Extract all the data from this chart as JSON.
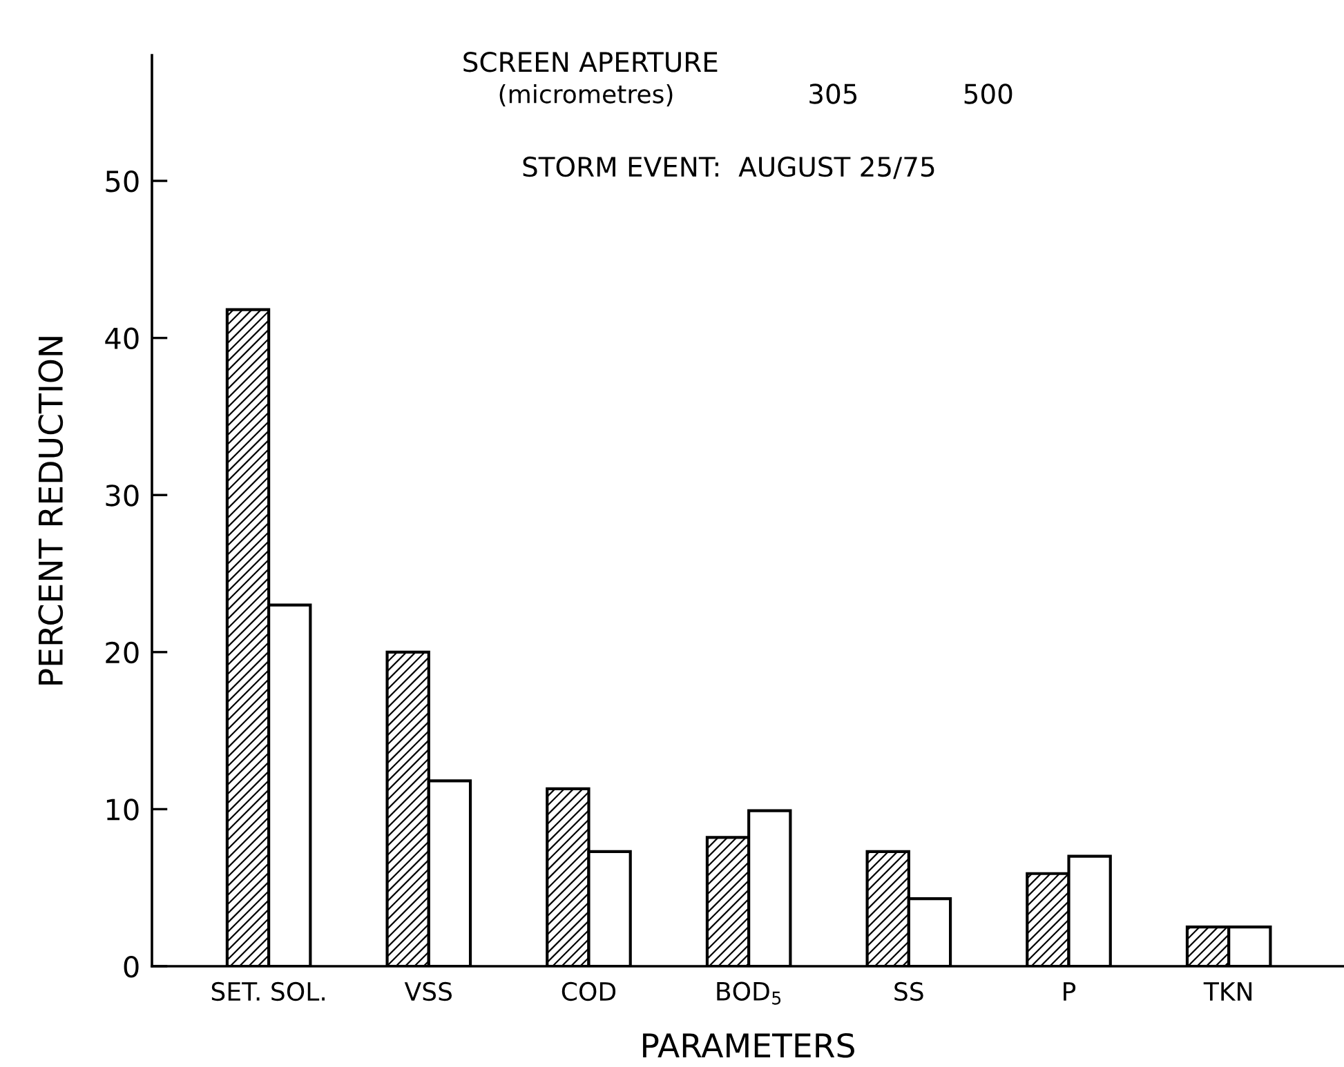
{
  "chart_data": {
    "type": "bar",
    "xlabel": "PARAMETERS",
    "ylabel": "PERCENT REDUCTION",
    "categories": [
      "SET. SOL.",
      "VSS",
      "COD",
      "BOD$_{5}$",
      "SS",
      "P",
      "TKN"
    ],
    "series": [
      {
        "color": "#000000",
        "values": [
          41.8,
          20.0,
          11.3,
          8.2,
          7.3,
          5.9,
          2.5
        ]
      },
      {
        "color": "#ffffff",
        "values": [
          23.0,
          11.8,
          7.3,
          9.9,
          4.3,
          7.0,
          2.5
        ]
      }
    ],
    "ylim": [
      0,
      58
    ],
    "yticks": [
      0,
      10,
      20,
      30,
      40,
      50
    ],
    "grid": false,
    "legend": false,
    "annotations": [
      "SCREEN APERTURE",
      "(micrometres)",
      "305",
      "500",
      "STORM EVENT:  AUGUST 25/75"
    ]
  }
}
